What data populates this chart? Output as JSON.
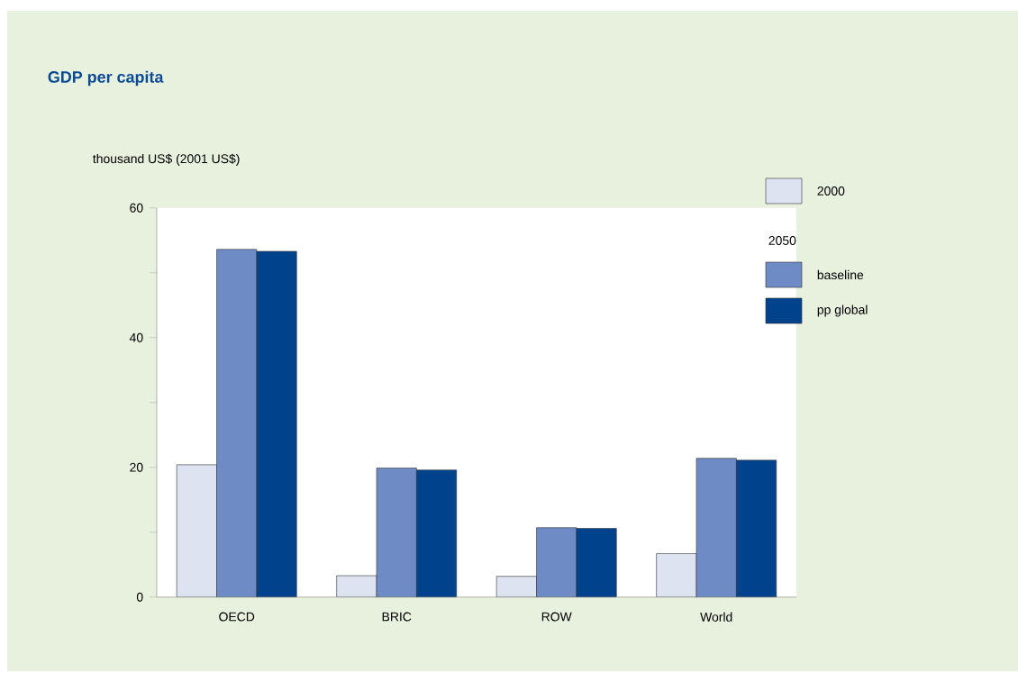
{
  "chart_data": {
    "type": "bar",
    "title": "GDP per capita",
    "ylabel": "thousand US$ (2001 US$)",
    "categories": [
      "OECD",
      "BRIC",
      "ROW",
      "World"
    ],
    "series": [
      {
        "name": "2000",
        "color": "#dde3f1",
        "values": [
          20.4,
          3.3,
          3.2,
          6.7
        ]
      },
      {
        "name": "baseline",
        "color": "#6f8bc5",
        "values": [
          53.6,
          19.9,
          10.7,
          21.4
        ]
      },
      {
        "name": "pp global",
        "color": "#00428c",
        "values": [
          53.3,
          19.6,
          10.6,
          21.1
        ]
      }
    ],
    "legend_title": "2050",
    "ylim": [
      0,
      60
    ],
    "yticks": [
      0,
      {
        "value": 10,
        "label": null
      },
      20,
      {
        "value": 30,
        "label": null
      },
      40,
      {
        "value": 50,
        "label": null
      },
      60
    ],
    "grid": false,
    "legend": "right"
  }
}
